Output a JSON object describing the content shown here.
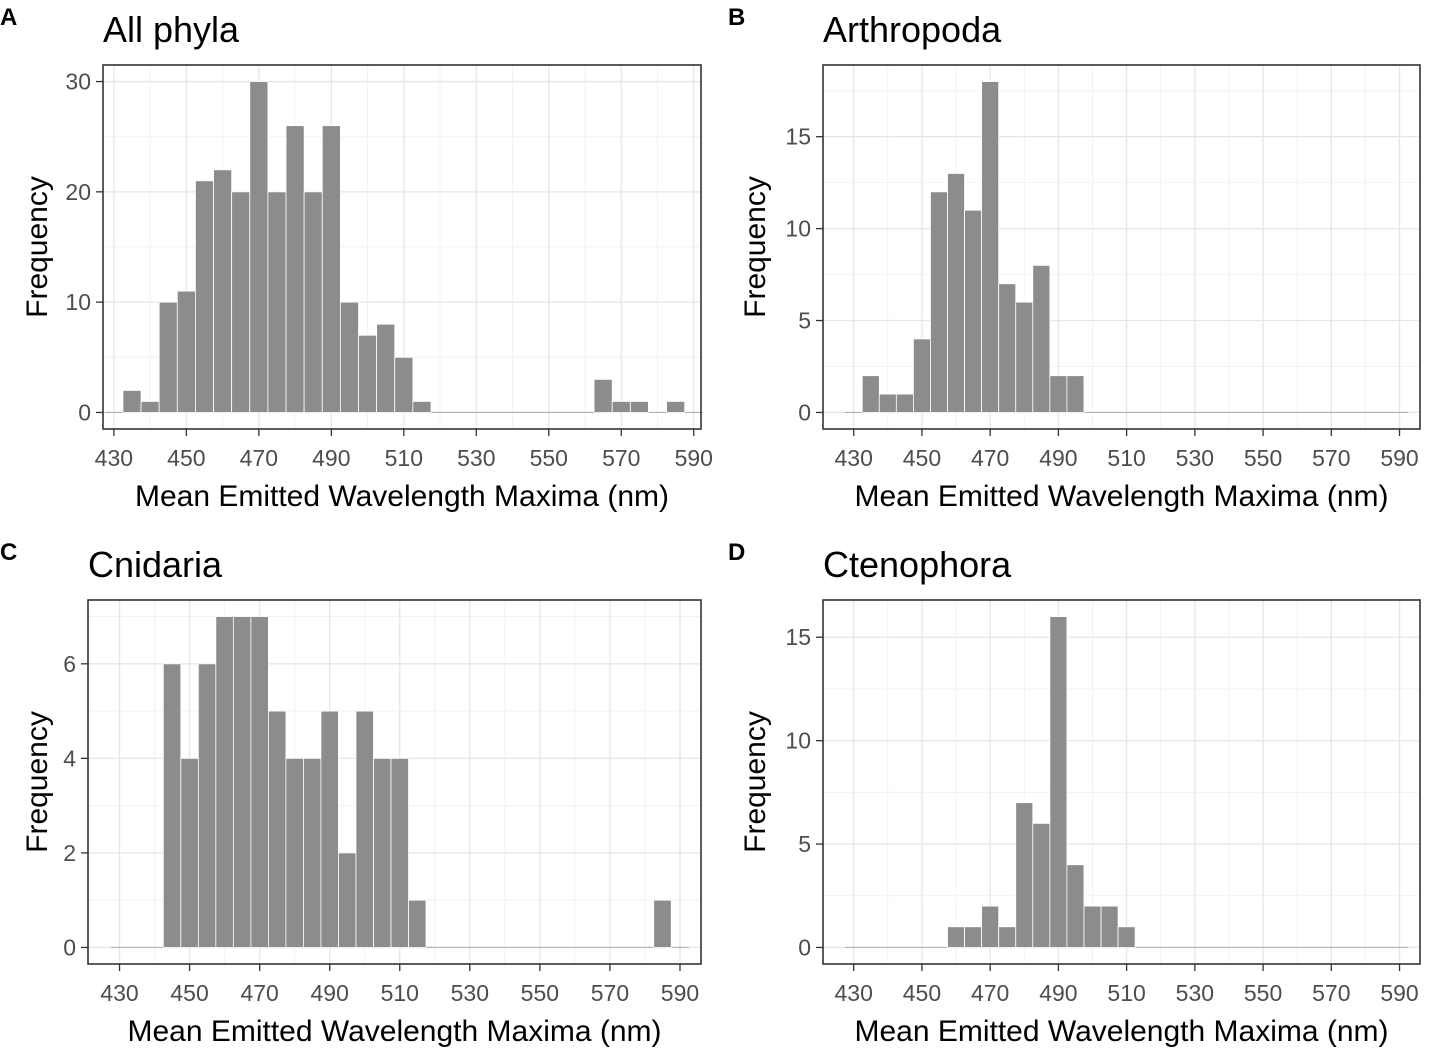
{
  "colors": {
    "bar": "#8c8c8c",
    "bar_border": "#ffffff",
    "frame": "#333333",
    "grid": "#e6e6e6",
    "tick_text": "#4d4d4d"
  },
  "chart_data": [
    {
      "panel": "A",
      "type": "bar",
      "title": "All phyla",
      "xlabel": "Mean Emitted Wavelength Maxima (nm)",
      "ylabel": "Frequency",
      "xlim": [
        427,
        592
      ],
      "ylim": [
        -1.5,
        31.5
      ],
      "xticks": [
        430,
        450,
        470,
        490,
        510,
        530,
        550,
        570,
        590
      ],
      "yticks": [
        0,
        10,
        20,
        30
      ],
      "bin_width": 5,
      "bin_start": 427.5,
      "values": [
        0,
        2,
        1,
        10,
        11,
        21,
        22,
        20,
        30,
        20,
        26,
        20,
        26,
        10,
        7,
        8,
        5,
        1,
        0,
        0,
        0,
        0,
        0,
        0,
        0,
        0,
        0,
        3,
        1,
        1,
        0,
        1,
        0
      ]
    },
    {
      "panel": "B",
      "type": "bar",
      "title": "Arthropoda",
      "xlabel": "Mean Emitted Wavelength Maxima (nm)",
      "ylabel": "Frequency",
      "xlim": [
        421,
        596
      ],
      "ylim": [
        -0.9,
        18.9
      ],
      "xticks": [
        430,
        450,
        470,
        490,
        510,
        530,
        550,
        570,
        590
      ],
      "yticks": [
        0,
        5,
        10,
        15
      ],
      "bin_width": 5,
      "bin_start": 427.5,
      "values": [
        0,
        2,
        1,
        1,
        4,
        12,
        13,
        11,
        18,
        7,
        6,
        8,
        2,
        2,
        0,
        0,
        0,
        0,
        0,
        0,
        0,
        0,
        0,
        0,
        0,
        0,
        0,
        0,
        0,
        0,
        0,
        0,
        0
      ]
    },
    {
      "panel": "C",
      "type": "bar",
      "title": "Cnidaria",
      "xlabel": "Mean Emitted Wavelength Maxima (nm)",
      "ylabel": "Frequency",
      "xlim": [
        421,
        596
      ],
      "ylim": [
        -0.35,
        7.35
      ],
      "xticks": [
        430,
        450,
        470,
        490,
        510,
        530,
        550,
        570,
        590
      ],
      "yticks": [
        0,
        2,
        4,
        6
      ],
      "bin_width": 5,
      "bin_start": 427.5,
      "values": [
        0,
        0,
        0,
        6,
        4,
        6,
        7,
        7,
        7,
        5,
        4,
        4,
        5,
        2,
        5,
        4,
        4,
        1,
        0,
        0,
        0,
        0,
        0,
        0,
        0,
        0,
        0,
        0,
        0,
        0,
        0,
        1,
        0
      ]
    },
    {
      "panel": "D",
      "type": "bar",
      "title": "Ctenophora",
      "xlabel": "Mean Emitted Wavelength Maxima (nm)",
      "ylabel": "Frequency",
      "xlim": [
        421,
        596
      ],
      "ylim": [
        -0.8,
        16.8
      ],
      "xticks": [
        430,
        450,
        470,
        490,
        510,
        530,
        550,
        570,
        590
      ],
      "yticks": [
        0,
        5,
        10,
        15
      ],
      "bin_width": 5,
      "bin_start": 427.5,
      "values": [
        0,
        0,
        0,
        0,
        0,
        0,
        1,
        1,
        2,
        1,
        7,
        6,
        16,
        4,
        2,
        2,
        1,
        0,
        0,
        0,
        0,
        0,
        0,
        0,
        0,
        0,
        0,
        0,
        0,
        0,
        0,
        0,
        0
      ]
    }
  ]
}
